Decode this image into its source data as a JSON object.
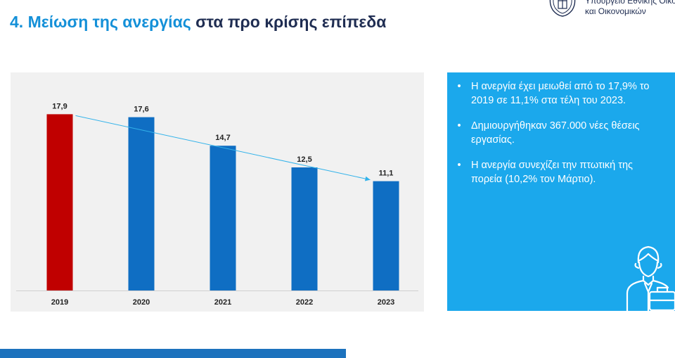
{
  "title": {
    "number": "4.",
    "highlight": "Μείωση της ανεργίας",
    "rest": "στα προ κρίσης επίπεδα"
  },
  "ministry": {
    "line1": "Υπουργείο Εθνικής Οικονομ",
    "line2": "και Οικονομικών"
  },
  "chart_data": {
    "type": "bar",
    "title": "",
    "xlabel": "",
    "ylabel": "",
    "categories": [
      "2019",
      "2020",
      "2021",
      "2022",
      "2023"
    ],
    "values": [
      17.9,
      17.6,
      14.7,
      12.5,
      11.1
    ],
    "labels": [
      "17,9",
      "17,6",
      "14,7",
      "12,5",
      "11,1"
    ],
    "colors": [
      "#c00000",
      "#0f6ec3",
      "#0f6ec3",
      "#0f6ec3",
      "#0f6ec3"
    ],
    "trend_line_color": "#33b3ea",
    "ylim": [
      0,
      20
    ],
    "grid": false,
    "legend": "none"
  },
  "bullets": [
    "Η ανεργία έχει μειωθεί από το 17,9% το 2019 σε 11,1% στα τέλη του 2023.",
    "Δημιουργήθηκαν 367.000 νέες θέσεις εργασίας.",
    "Η ανεργία συνεχίζει την πτωτική της πορεία (10,2% τον Μάρτιο)."
  ],
  "bullet_symbol": "•",
  "colors": {
    "title_dark": "#1f2d52",
    "title_accent": "#1490d8",
    "panel_blue": "#1ba8ec",
    "bottom_bar": "#1c72bd"
  }
}
